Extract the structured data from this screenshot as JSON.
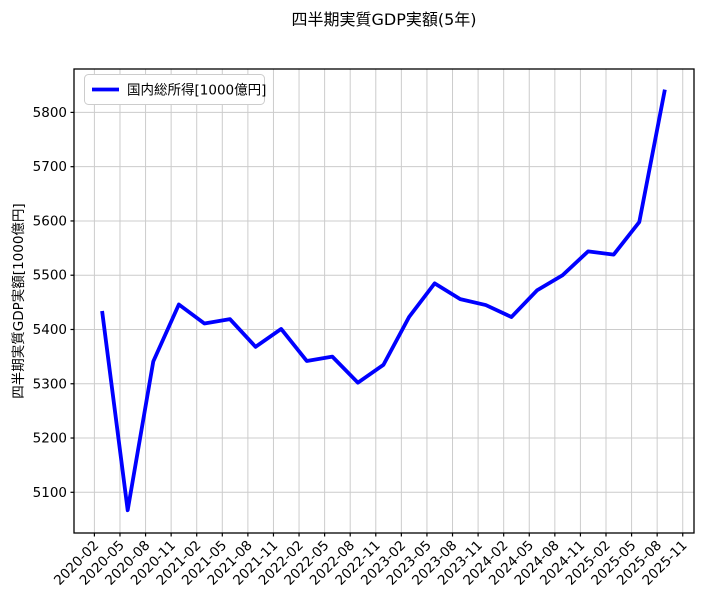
{
  "chart_data": {
    "type": "line",
    "title": "四半期実質GDP実額(5年)",
    "ylabel": "四半期実質GDP実額[1000億円]",
    "xlabel": "",
    "grid": true,
    "legend": {
      "position": "upper left",
      "entries": [
        "国内総所得[1000億円]"
      ]
    },
    "x_tick_labels": [
      "2020-02",
      "2020-05",
      "2020-08",
      "2020-11",
      "2021-02",
      "2021-05",
      "2021-08",
      "2021-11",
      "2022-02",
      "2022-05",
      "2022-08",
      "2022-11",
      "2023-02",
      "2023-05",
      "2023-08",
      "2023-11",
      "2024-02",
      "2024-05",
      "2024-08",
      "2024-11",
      "2025-02",
      "2025-05",
      "2025-08",
      "2025-11"
    ],
    "y_ticks": [
      5100,
      5200,
      5300,
      5400,
      5500,
      5600,
      5700,
      5800
    ],
    "ylim": [
      5025,
      5880
    ],
    "x": [
      "2020-02",
      "2020-05",
      "2020-08",
      "2020-11",
      "2021-02",
      "2021-05",
      "2021-08",
      "2021-11",
      "2022-02",
      "2022-05",
      "2022-08",
      "2022-11",
      "2023-02",
      "2023-05",
      "2023-08",
      "2023-11",
      "2024-02",
      "2024-05",
      "2024-08",
      "2024-11",
      "2025-02",
      "2025-05",
      "2025-08"
    ],
    "series": [
      {
        "name": "国内総所得[1000億円]",
        "color": "#0000ff",
        "values": [
          5434,
          5067,
          5341,
          5446,
          5411,
          5419,
          5368,
          5401,
          5342,
          5350,
          5302,
          5335,
          5423,
          5485,
          5456,
          5445,
          5423,
          5472,
          5500,
          5544,
          5538,
          5598,
          5842
        ]
      }
    ]
  },
  "colors": {
    "line": "#0000ff",
    "grid": "#cccccc",
    "axis": "#000000",
    "background": "#ffffff",
    "legend_border": "#cccccc"
  }
}
